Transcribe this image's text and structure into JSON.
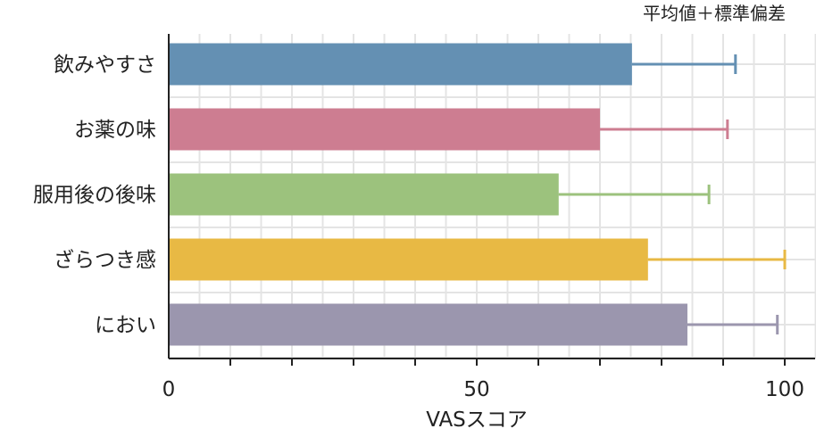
{
  "chart_data": {
    "type": "bar",
    "orientation": "horizontal",
    "legend_note": "平均値＋標準偏差",
    "categories": [
      "飲みやすさ",
      "お薬の味",
      "服用後の後味",
      "ざらつき感",
      "におい"
    ],
    "values": [
      75.2,
      70.0,
      63.3,
      77.8,
      84.2
    ],
    "error_upper": [
      92.0,
      90.7,
      87.7,
      100.0,
      98.8
    ],
    "colors": [
      "#6490b3",
      "#cd7d91",
      "#9cc27d",
      "#e8b944",
      "#9b96ae"
    ],
    "xlabel": "VASスコア",
    "ylabel": "",
    "xlim": [
      0,
      105
    ],
    "xticks": [
      0,
      50,
      100
    ],
    "minor_ticks_every": 10,
    "grid": true
  }
}
